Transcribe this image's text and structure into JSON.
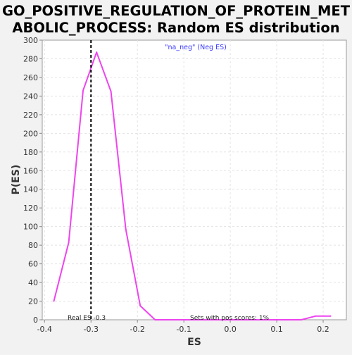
{
  "chart_data": {
    "type": "line",
    "title_line1": "GO_POSITIVE_REGULATION_OF_PROTEIN_MET",
    "title_line2": "ABOLIC_PROCESS: Random ES distribution",
    "xlabel": "ES",
    "ylabel": "P(ES)",
    "xlim": [
      -0.405,
      0.25
    ],
    "ylim": [
      0,
      300
    ],
    "x_ticks": [
      -0.4,
      -0.3,
      -0.2,
      -0.1,
      0.0,
      0.1,
      0.2
    ],
    "x_tick_labels": [
      "-0.4",
      "-0.3",
      "-0.2",
      "-0.1",
      "0.0",
      "0.1",
      "0.2"
    ],
    "y_ticks": [
      0,
      20,
      40,
      60,
      80,
      100,
      120,
      140,
      160,
      180,
      200,
      220,
      240,
      260,
      280,
      300
    ],
    "y_tick_labels": [
      "0",
      "20",
      "40",
      "60",
      "80",
      "100",
      "120",
      "140",
      "160",
      "180",
      "200",
      "220",
      "240",
      "260",
      "280",
      "300"
    ],
    "grid": true,
    "legend": {
      "label": "\"na_neg\" (Neg ES)",
      "placement": "top-center",
      "color": "#3a3aff"
    },
    "series": [
      {
        "name": "\"na_neg\" (Neg ES)",
        "color": "#ee44ee",
        "x": [
          -0.38,
          -0.348,
          -0.317,
          -0.288,
          -0.257,
          -0.225,
          -0.194,
          -0.162,
          -0.131,
          -0.099,
          -0.068,
          -0.036,
          -0.005,
          0.027,
          0.058,
          0.09,
          0.121,
          0.153,
          0.184,
          0.216
        ],
        "values": [
          20,
          83,
          246,
          287,
          245,
          97,
          15,
          0,
          0,
          0,
          0,
          0,
          0,
          0,
          0,
          0,
          0,
          0,
          4,
          4
        ]
      }
    ],
    "real_es": {
      "x": -0.3,
      "label": "Real ES -0.3",
      "color": "#000000"
    },
    "annotation": "Sets with pos scores: 1%"
  }
}
